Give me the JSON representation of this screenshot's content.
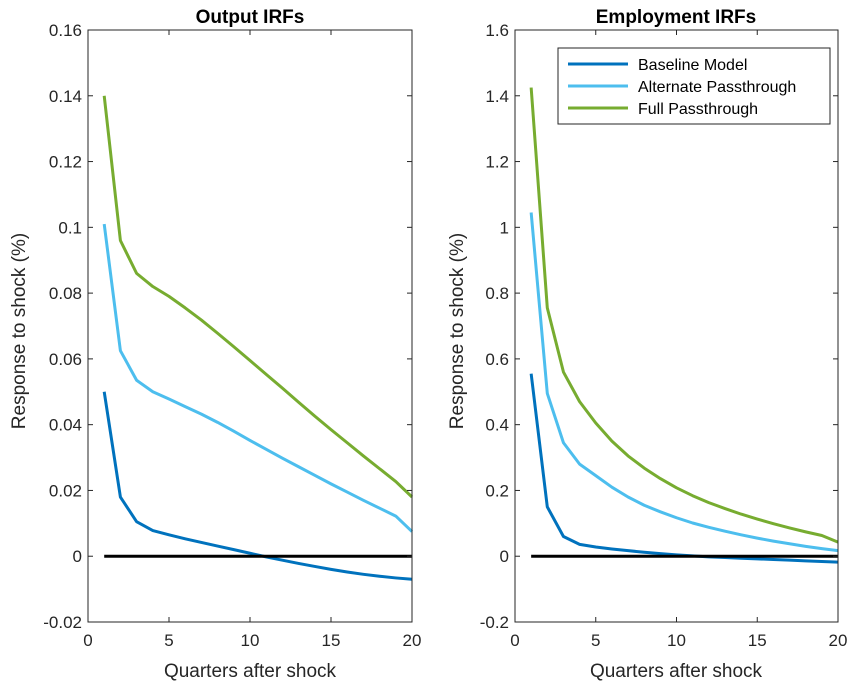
{
  "chart_data": [
    {
      "type": "line",
      "title": "Output IRFs",
      "xlabel": "Quarters after shock",
      "ylabel": "Response to shock (%)",
      "xlim": [
        0,
        20
      ],
      "ylim": [
        -0.02,
        0.16
      ],
      "xticks": [
        "0",
        "5",
        "10",
        "15",
        "20"
      ],
      "yticks": [
        "-0.02",
        "0",
        "0.02",
        "0.04",
        "0.06",
        "0.08",
        "0.1",
        "0.12",
        "0.14",
        "0.16"
      ],
      "x": [
        1,
        2,
        3,
        4,
        5,
        6,
        7,
        8,
        9,
        10,
        11,
        12,
        13,
        14,
        15,
        16,
        17,
        18,
        19,
        20
      ],
      "series": [
        {
          "name": "Baseline Model",
          "color": "#0072bd",
          "values": [
            0.05,
            0.018,
            0.0105,
            0.0078,
            0.0065,
            0.0053,
            0.0042,
            0.0031,
            0.002,
            0.0009,
            -0.0002,
            -0.0012,
            -0.0022,
            -0.0031,
            -0.004,
            -0.0048,
            -0.0055,
            -0.0061,
            -0.0066,
            -0.007
          ]
        },
        {
          "name": "Alternate Passthrough",
          "color": "#4dbeee",
          "values": [
            0.101,
            0.0625,
            0.0535,
            0.05,
            0.0478,
            0.0455,
            0.0432,
            0.0407,
            0.038,
            0.0352,
            0.0325,
            0.0298,
            0.0272,
            0.0246,
            0.022,
            0.0195,
            0.017,
            0.0146,
            0.0122,
            0.0075
          ]
        },
        {
          "name": "Full Passthrough",
          "color": "#77ac30",
          "values": [
            0.14,
            0.096,
            0.086,
            0.082,
            0.079,
            0.0755,
            0.0718,
            0.0678,
            0.0637,
            0.0595,
            0.0553,
            0.0511,
            0.0468,
            0.0426,
            0.0385,
            0.0345,
            0.0305,
            0.0266,
            0.0227,
            0.018
          ]
        },
        {
          "name": "",
          "color": "#000000",
          "values": [
            0,
            0,
            0,
            0,
            0,
            0,
            0,
            0,
            0,
            0,
            0,
            0,
            0,
            0,
            0,
            0,
            0,
            0,
            0,
            0
          ]
        }
      ],
      "legend": "none",
      "grid": false
    },
    {
      "type": "line",
      "title": "Employment IRFs",
      "xlabel": "Quarters after shock",
      "ylabel": "Response to shock (%)",
      "xlim": [
        0,
        20
      ],
      "ylim": [
        -0.2,
        1.6
      ],
      "xticks": [
        "0",
        "5",
        "10",
        "15",
        "20"
      ],
      "yticks": [
        "-0.2",
        "0",
        "0.2",
        "0.4",
        "0.6",
        "0.8",
        "1",
        "1.2",
        "1.4",
        "1.6"
      ],
      "x": [
        1,
        2,
        3,
        4,
        5,
        6,
        7,
        8,
        9,
        10,
        11,
        12,
        13,
        14,
        15,
        16,
        17,
        18,
        19,
        20
      ],
      "series": [
        {
          "name": "Baseline Model",
          "color": "#0072bd",
          "values": [
            0.555,
            0.15,
            0.06,
            0.036,
            0.028,
            0.022,
            0.017,
            0.012,
            0.008,
            0.004,
            0.001,
            -0.002,
            -0.004,
            -0.006,
            -0.008,
            -0.01,
            -0.012,
            -0.014,
            -0.016,
            -0.018
          ]
        },
        {
          "name": "Alternate Passthrough",
          "color": "#4dbeee",
          "values": [
            1.045,
            0.495,
            0.345,
            0.28,
            0.245,
            0.21,
            0.18,
            0.155,
            0.135,
            0.117,
            0.101,
            0.088,
            0.076,
            0.065,
            0.055,
            0.046,
            0.038,
            0.03,
            0.023,
            0.017
          ]
        },
        {
          "name": "Full Passthrough",
          "color": "#77ac30",
          "values": [
            1.425,
            0.755,
            0.56,
            0.47,
            0.405,
            0.35,
            0.305,
            0.268,
            0.236,
            0.208,
            0.184,
            0.163,
            0.145,
            0.128,
            0.113,
            0.099,
            0.086,
            0.074,
            0.063,
            0.043
          ]
        },
        {
          "name": "",
          "color": "#000000",
          "values": [
            0,
            0,
            0,
            0,
            0,
            0,
            0,
            0,
            0,
            0,
            0,
            0,
            0,
            0,
            0,
            0,
            0,
            0,
            0,
            0
          ]
        }
      ],
      "legend": "top-right",
      "grid": false
    }
  ]
}
